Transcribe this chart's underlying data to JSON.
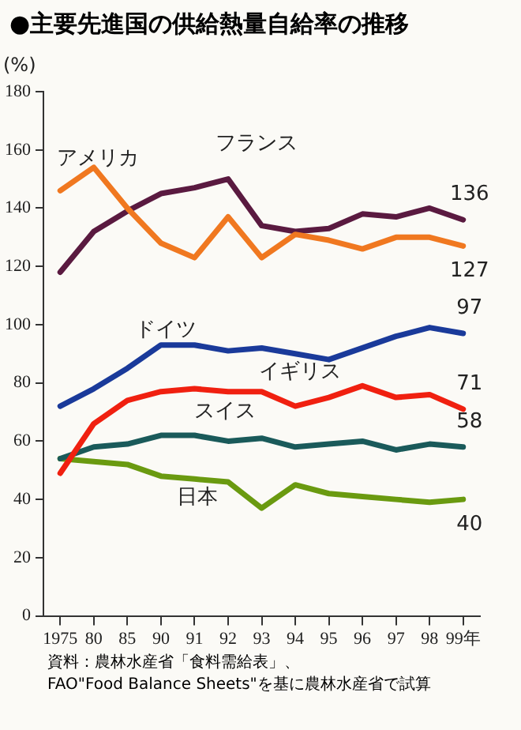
{
  "chart_data": {
    "type": "line",
    "title": "●主要先進国の供給熱量自給率の推移",
    "ylabel": "(%)",
    "categories": [
      "1975",
      "80",
      "85",
      "90",
      "91",
      "92",
      "93",
      "94",
      "95",
      "96",
      "97",
      "98",
      "99年"
    ],
    "ylim": [
      0,
      180
    ],
    "yticks": [
      0,
      20,
      40,
      60,
      80,
      100,
      120,
      140,
      160,
      180
    ],
    "grid": false,
    "legend": false,
    "marker": "none",
    "line_style": "solid",
    "series": [
      {
        "name": "アメリカ",
        "color": "#f07820",
        "values": [
          146,
          154,
          140,
          128,
          123,
          137,
          123,
          131,
          129,
          126,
          130,
          130,
          127
        ],
        "value_labels": [
          null,
          null,
          null,
          null,
          null,
          null,
          null,
          null,
          null,
          null,
          null,
          null,
          "127"
        ]
      },
      {
        "name": "フランス",
        "color": "#5a1a40",
        "values": [
          118,
          132,
          139,
          145,
          147,
          150,
          134,
          132,
          133,
          138,
          137,
          140,
          136
        ],
        "value_labels": [
          null,
          null,
          null,
          null,
          null,
          null,
          null,
          null,
          null,
          null,
          null,
          null,
          "136"
        ]
      },
      {
        "name": "ドイツ",
        "color": "#1a3a9a",
        "values": [
          72,
          78,
          85,
          93,
          93,
          91,
          92,
          90,
          88,
          92,
          96,
          99,
          97
        ],
        "value_labels": [
          null,
          null,
          null,
          null,
          null,
          null,
          null,
          null,
          null,
          null,
          null,
          null,
          "97"
        ]
      },
      {
        "name": "イギリス",
        "color": "#f02010",
        "values": [
          49,
          66,
          74,
          77,
          78,
          77,
          77,
          72,
          75,
          79,
          75,
          76,
          71
        ],
        "value_labels": [
          null,
          null,
          null,
          null,
          null,
          null,
          null,
          null,
          null,
          null,
          null,
          null,
          "71"
        ]
      },
      {
        "name": "スイス",
        "color": "#1a5a5a",
        "values": [
          54,
          58,
          59,
          62,
          62,
          60,
          61,
          58,
          59,
          60,
          57,
          59,
          58
        ],
        "value_labels": [
          null,
          null,
          null,
          null,
          null,
          null,
          null,
          null,
          null,
          null,
          null,
          null,
          "58"
        ]
      },
      {
        "name": "日本",
        "color": "#6a9a10",
        "values": [
          54,
          53,
          52,
          48,
          47,
          46,
          37,
          45,
          42,
          41,
          40,
          39,
          40
        ],
        "value_labels": [
          null,
          null,
          null,
          null,
          null,
          null,
          null,
          null,
          null,
          null,
          null,
          null,
          "40"
        ]
      }
    ],
    "annotations": [
      "資料：農林水産省「食料需給表」、\nFAO\"Food Balance Sheets\"を基に農林水産省で試算"
    ]
  }
}
